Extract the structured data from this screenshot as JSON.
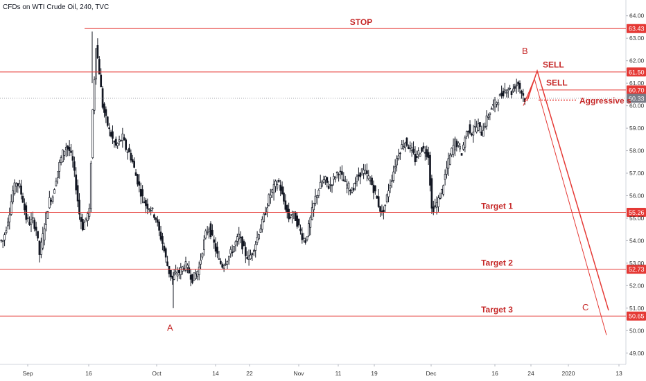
{
  "header": {
    "title": "CFDs on WTI Crude Oil, 240, TVC"
  },
  "colors": {
    "red": "#e53935",
    "text_red": "#c62828",
    "candle": "#131722",
    "current": "#787b86"
  },
  "chart_data": {
    "type": "candlestick",
    "ylim": [
      48.5,
      64.7
    ],
    "y_ticks": [
      "64.00",
      "63.00",
      "62.00",
      "61.00",
      "60.00",
      "59.00",
      "58.00",
      "57.00",
      "56.00",
      "55.00",
      "54.00",
      "53.00",
      "52.00",
      "51.00",
      "50.00",
      "49.00"
    ],
    "x_ticks": [
      "Sep",
      "16",
      "Oct",
      "14",
      "22",
      "Nov",
      "11",
      "19",
      "Dec",
      "16",
      "24",
      "2020",
      "13"
    ],
    "levels": [
      {
        "name": "STOP",
        "value": 63.43,
        "label": "63.43"
      },
      {
        "name": "",
        "value": 61.5,
        "label": "61.50"
      },
      {
        "name": "",
        "value": 60.7,
        "label": "60.70"
      },
      {
        "name": "Target 1",
        "value": 55.26,
        "label": "55.26"
      },
      {
        "name": "Target 2",
        "value": 52.73,
        "label": "52.73"
      },
      {
        "name": "Target 3",
        "value": 50.65,
        "label": "50.65"
      }
    ],
    "current_price": {
      "value": 60.33,
      "label": "60.33"
    },
    "annotations": {
      "sell_1": "SELL",
      "sell_2": "SELL",
      "aggressive": "Aggressive s",
      "point_a": "A",
      "point_b": "B",
      "point_c": "C"
    },
    "closes": [
      54.0,
      54.6,
      55.3,
      56.2,
      56.6,
      56.4,
      55.8,
      55.0,
      54.8,
      54.9,
      54.5,
      53.4,
      54.2,
      55.1,
      55.8,
      56.0,
      56.8,
      57.4,
      57.9,
      58.2,
      58.0,
      57.5,
      56.4,
      55.2,
      54.6,
      55.0,
      55.3,
      59.8,
      62.7,
      61.5,
      60.0,
      59.4,
      58.9,
      58.5,
      58.2,
      58.4,
      58.6,
      58.1,
      57.9,
      57.5,
      56.9,
      56.4,
      55.9,
      55.6,
      55.5,
      55.3,
      55.0,
      54.4,
      53.9,
      53.2,
      52.6,
      52.3,
      52.5,
      52.6,
      52.8,
      52.9,
      52.6,
      52.3,
      52.5,
      52.8,
      53.6,
      54.3,
      54.6,
      54.1,
      53.6,
      53.1,
      52.9,
      53.1,
      53.3,
      53.6,
      53.9,
      54.2,
      53.8,
      53.4,
      53.2,
      53.5,
      53.9,
      54.4,
      54.8,
      55.3,
      55.9,
      56.2,
      56.5,
      56.6,
      56.0,
      55.5,
      55.0,
      55.2,
      55.0,
      54.6,
      54.2,
      54.0,
      54.6,
      55.3,
      55.9,
      56.3,
      56.6,
      56.7,
      56.4,
      56.6,
      56.9,
      57.1,
      56.8,
      56.5,
      56.4,
      56.2,
      56.6,
      56.9,
      57.1,
      57.0,
      56.8,
      56.5,
      56.1,
      55.6,
      55.2,
      55.6,
      56.3,
      56.8,
      57.4,
      57.9,
      58.2,
      58.4,
      58.2,
      58.0,
      57.6,
      57.9,
      58.1,
      58.0,
      57.8,
      55.4,
      55.5,
      55.8,
      56.2,
      56.9,
      57.5,
      58.0,
      58.4,
      58.2,
      57.9,
      58.6,
      59.0,
      58.8,
      59.0,
      59.1,
      58.8,
      59.2,
      59.6,
      59.9,
      60.1,
      60.3,
      60.5,
      60.7,
      60.8,
      60.6,
      60.9,
      61.0,
      60.6,
      60.3
    ]
  }
}
